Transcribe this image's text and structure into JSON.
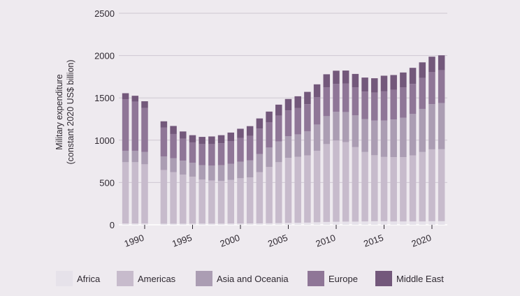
{
  "chart_data": {
    "type": "bar",
    "stacked": true,
    "title": "",
    "ylabel_lines": [
      "Military expenditure",
      "(constant 2020 US$ billion)"
    ],
    "xlabel": "",
    "ylim": [
      0,
      2500
    ],
    "y_ticks": [
      0,
      500,
      1000,
      1500,
      2000,
      2500
    ],
    "y_tick_labels": [
      "0",
      "500",
      "1000",
      "1500",
      "2000",
      "2500"
    ],
    "x_ticks": [
      1990,
      1995,
      2000,
      2005,
      2010,
      2015,
      2020
    ],
    "x_tick_labels": [
      "1990",
      "1995",
      "2000",
      "2005",
      "2010",
      "2015",
      "2020"
    ],
    "grid": "horizontal",
    "legend_position": "bottom",
    "x": [
      1988,
      1989,
      1990,
      1992,
      1993,
      1994,
      1995,
      1996,
      1997,
      1998,
      1999,
      2000,
      2001,
      2002,
      2003,
      2004,
      2005,
      2006,
      2007,
      2008,
      2009,
      2010,
      2011,
      2012,
      2013,
      2014,
      2015,
      2016,
      2017,
      2018,
      2019,
      2020,
      2021
    ],
    "series": [
      {
        "name": "Africa",
        "color": "#e6e2ea",
        "values": [
          15,
          15,
          15,
          13,
          13,
          13,
          14,
          14,
          14,
          14,
          15,
          15,
          16,
          17,
          18,
          20,
          22,
          24,
          26,
          30,
          34,
          36,
          38,
          38,
          40,
          42,
          42,
          40,
          40,
          40,
          40,
          42,
          43
        ]
      },
      {
        "name": "Americas",
        "color": "#c7bbcc",
        "values": [
          725,
          725,
          700,
          635,
          610,
          580,
          555,
          520,
          510,
          505,
          515,
          535,
          545,
          605,
          665,
          720,
          770,
          780,
          795,
          845,
          920,
          960,
          940,
          880,
          820,
          780,
          760,
          760,
          760,
          780,
          820,
          850,
          850
        ]
      },
      {
        "name": "Asia and Oceania",
        "color": "#ab9db3",
        "values": [
          135,
          135,
          145,
          160,
          165,
          165,
          165,
          170,
          175,
          185,
          190,
          195,
          200,
          215,
          230,
          245,
          255,
          265,
          285,
          310,
          330,
          340,
          355,
          375,
          390,
          410,
          430,
          445,
          465,
          490,
          510,
          535,
          545
        ]
      },
      {
        "name": "Europe",
        "color": "#8f7697",
        "values": [
          610,
          580,
          520,
          340,
          285,
          260,
          240,
          250,
          255,
          260,
          270,
          280,
          290,
          300,
          300,
          305,
          305,
          310,
          320,
          325,
          340,
          330,
          335,
          330,
          325,
          330,
          345,
          350,
          360,
          355,
          365,
          380,
          390
        ]
      },
      {
        "name": "Middle East",
        "color": "#73587b",
        "values": [
          70,
          70,
          80,
          75,
          95,
          85,
          85,
          85,
          90,
          95,
          100,
          110,
          115,
          120,
          125,
          130,
          135,
          140,
          145,
          150,
          155,
          155,
          155,
          160,
          165,
          170,
          185,
          175,
          175,
          190,
          185,
          180,
          175
        ]
      }
    ]
  }
}
